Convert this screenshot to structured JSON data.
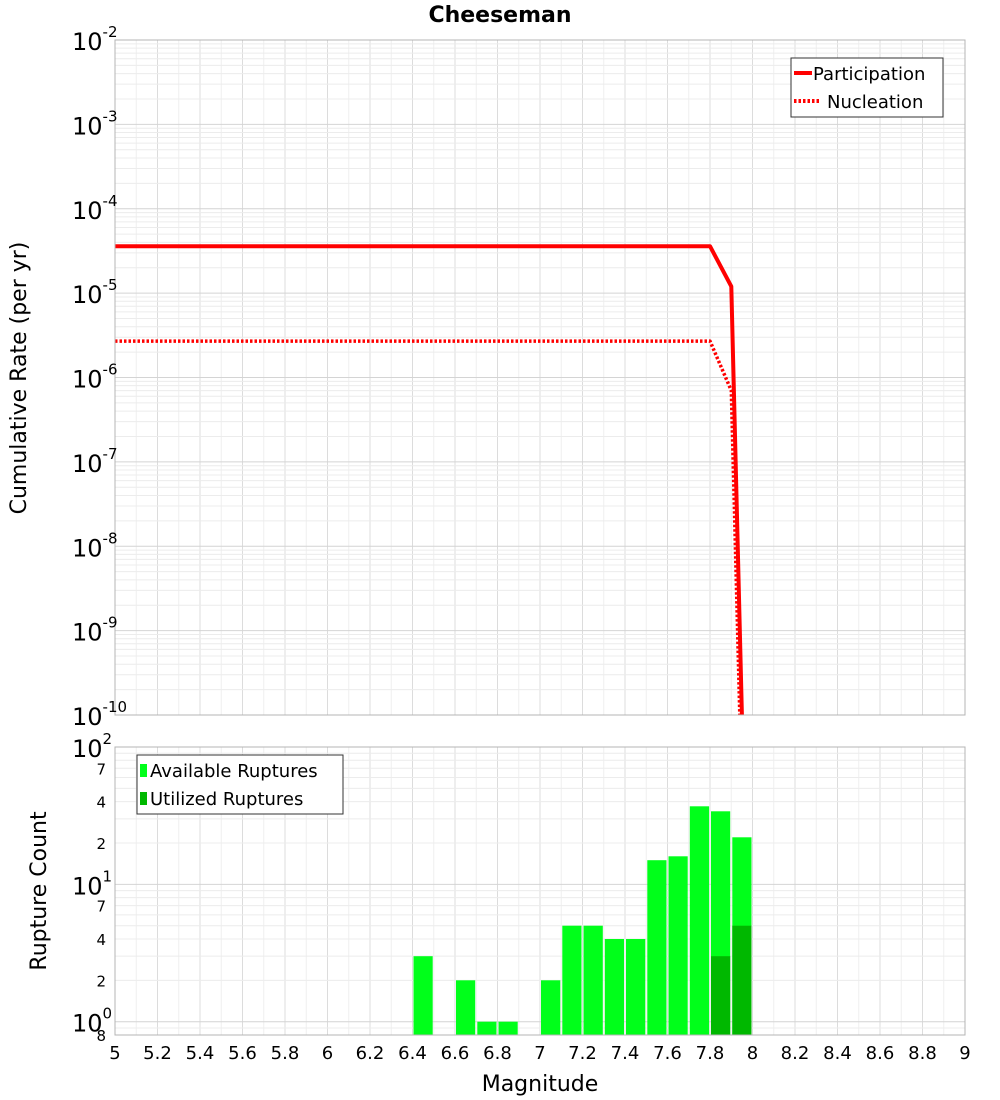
{
  "chart_data": [
    {
      "type": "line",
      "title": "Cheeseman",
      "xlabel": "Magnitude",
      "ylabel": "Cumulative Rate (per yr)",
      "xlim": [
        5,
        9
      ],
      "ylim_log10": [
        -10,
        -2
      ],
      "yscale": "log",
      "y_tick_base": "10",
      "y_tick_exponents": [
        "-2",
        "-3",
        "-4",
        "-5",
        "-6",
        "-7",
        "-8",
        "-9",
        "-10"
      ],
      "legend_position": "top-right",
      "series": [
        {
          "name": "Participation",
          "style": "solid",
          "color": "#ff0000",
          "x": [
            5.0,
            7.8,
            7.9,
            7.95
          ],
          "y": [
            3.6e-05,
            3.6e-05,
            1.2e-05,
            1e-10
          ]
        },
        {
          "name": "Nucleation",
          "style": "dotted",
          "color": "#ff0000",
          "x": [
            5.0,
            7.8,
            7.9,
            7.94
          ],
          "y": [
            2.7e-06,
            2.7e-06,
            7e-07,
            1e-10
          ]
        }
      ]
    },
    {
      "type": "bar",
      "xlabel": "Magnitude",
      "ylabel": "Rupture Count",
      "xlim": [
        5,
        9
      ],
      "yscale": "log",
      "ylim": [
        0.8,
        100
      ],
      "bin_width": 0.1,
      "x_ticks": [
        "5",
        "5.2",
        "5.4",
        "5.6",
        "5.8",
        "6",
        "6.2",
        "6.4",
        "6.6",
        "6.8",
        "7",
        "7.2",
        "7.4",
        "7.6",
        "7.8",
        "8",
        "8.2",
        "8.4",
        "8.6",
        "8.8",
        "9"
      ],
      "y_major_labels": [
        {
          "value": 100,
          "base": "10",
          "exp": "2"
        },
        {
          "value": 10,
          "base": "10",
          "exp": "1"
        },
        {
          "value": 1,
          "base": "10",
          "exp": "0"
        }
      ],
      "y_minor_labels": [
        {
          "value": 70,
          "label": "7"
        },
        {
          "value": 40,
          "label": "4"
        },
        {
          "value": 20,
          "label": "2"
        },
        {
          "value": 7,
          "label": "7"
        },
        {
          "value": 4,
          "label": "4"
        },
        {
          "value": 2,
          "label": "2"
        },
        {
          "value": 0.8,
          "label": "8"
        }
      ],
      "legend_position": "top-left",
      "series": [
        {
          "name": "Available Ruptures",
          "color": "#00ff1a",
          "x": [
            6.45,
            6.65,
            6.75,
            6.85,
            7.05,
            7.15,
            7.25,
            7.35,
            7.45,
            7.55,
            7.65,
            7.75,
            7.85,
            7.95
          ],
          "values": [
            3,
            2,
            1,
            1,
            2,
            5,
            5,
            4,
            4,
            15,
            16,
            37,
            34,
            22
          ]
        },
        {
          "name": "Utilized Ruptures",
          "color": "#00b800",
          "x": [
            7.85,
            7.95
          ],
          "values": [
            3,
            5
          ]
        }
      ]
    }
  ]
}
